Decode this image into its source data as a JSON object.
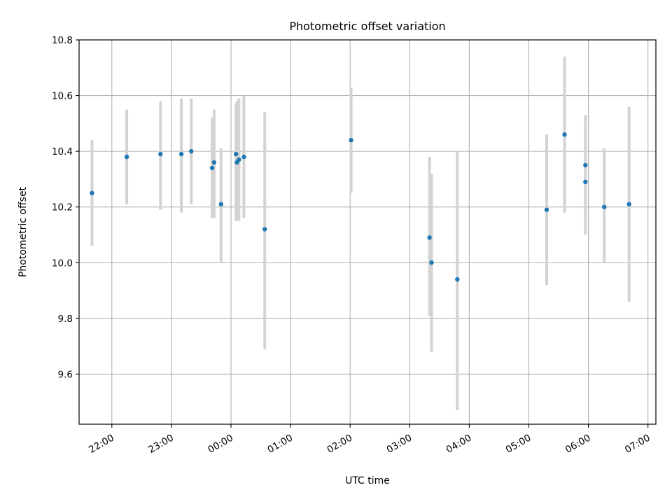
{
  "chart_data": {
    "type": "scatter",
    "title": "Photometric offset variation",
    "xlabel": "UTC time",
    "ylabel": "Photometric offset",
    "ylim": [
      9.42,
      10.8
    ],
    "xlim": [
      "21:27",
      "07:08"
    ],
    "x_axis": "time",
    "grid": true,
    "x_ticks": [
      "22:00",
      "23:00",
      "00:00",
      "01:00",
      "02:00",
      "03:00",
      "04:00",
      "05:00",
      "06:00",
      "07:00"
    ],
    "y_ticks": [
      "9.6",
      "9.8",
      "10.0",
      "10.2",
      "10.4",
      "10.6",
      "10.8"
    ],
    "marker_color": "#1f77b4",
    "errorbar_color": "#d3d3d3",
    "points": [
      {
        "x": "21:40",
        "y": 10.25,
        "err_low": 10.06,
        "err_high": 10.44
      },
      {
        "x": "22:15",
        "y": 10.38,
        "err_low": 10.21,
        "err_high": 10.55
      },
      {
        "x": "22:49",
        "y": 10.39,
        "err_low": 10.19,
        "err_high": 10.58
      },
      {
        "x": "23:10",
        "y": 10.39,
        "err_low": 10.18,
        "err_high": 10.59
      },
      {
        "x": "23:20",
        "y": 10.4,
        "err_low": 10.21,
        "err_high": 10.59
      },
      {
        "x": "23:41",
        "y": 10.34,
        "err_low": 10.16,
        "err_high": 10.52
      },
      {
        "x": "23:43",
        "y": 10.36,
        "err_low": 10.16,
        "err_high": 10.55
      },
      {
        "x": "23:50",
        "y": 10.21,
        "err_low": 10.0,
        "err_high": 10.41
      },
      {
        "x": "00:05",
        "y": 10.39,
        "err_low": 10.15,
        "err_high": 10.57
      },
      {
        "x": "00:06",
        "y": 10.36,
        "err_low": 10.15,
        "err_high": 10.58
      },
      {
        "x": "00:08",
        "y": 10.37,
        "err_low": 10.15,
        "err_high": 10.59
      },
      {
        "x": "00:13",
        "y": 10.38,
        "err_low": 10.16,
        "err_high": 10.6
      },
      {
        "x": "00:34",
        "y": 10.12,
        "err_low": 9.69,
        "err_high": 10.54
      },
      {
        "x": "02:01",
        "y": 10.44,
        "err_low": 10.25,
        "err_high": 10.63
      },
      {
        "x": "03:20",
        "y": 10.09,
        "err_low": 9.81,
        "err_high": 10.38
      },
      {
        "x": "03:22",
        "y": 10.0,
        "err_low": 9.68,
        "err_high": 10.32
      },
      {
        "x": "03:48",
        "y": 9.94,
        "err_low": 9.47,
        "err_high": 10.4
      },
      {
        "x": "05:18",
        "y": 10.19,
        "err_low": 9.92,
        "err_high": 10.46
      },
      {
        "x": "05:36",
        "y": 10.46,
        "err_low": 10.18,
        "err_high": 10.74
      },
      {
        "x": "05:57",
        "y": 10.35,
        "err_low": 10.18,
        "err_high": 10.53
      },
      {
        "x": "05:57",
        "y": 10.29,
        "err_low": 10.1,
        "err_high": 10.46
      },
      {
        "x": "06:16",
        "y": 10.2,
        "err_low": 10.0,
        "err_high": 10.41
      },
      {
        "x": "06:41",
        "y": 10.21,
        "err_low": 9.86,
        "err_high": 10.56
      }
    ]
  }
}
